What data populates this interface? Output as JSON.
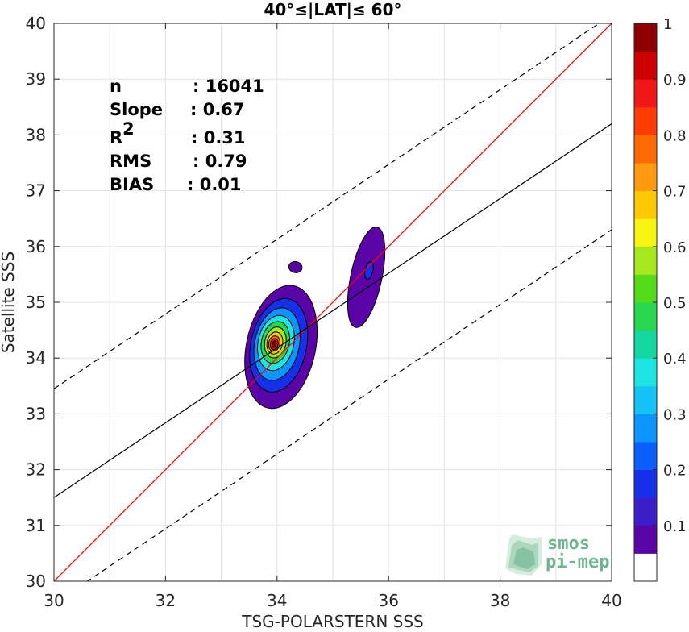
{
  "chart_data": {
    "type": "contour",
    "title": "40°≤|LAT|≤ 60°",
    "xlabel": "TSG-POLARSTERN SSS",
    "ylabel": "Satellite SSS",
    "xlim": [
      30,
      40
    ],
    "ylim": [
      30,
      40
    ],
    "xticks": [
      "30",
      "32",
      "34",
      "36",
      "38",
      "40"
    ],
    "yticks": [
      "30",
      "31",
      "32",
      "33",
      "34",
      "35",
      "36",
      "37",
      "38",
      "39",
      "40"
    ],
    "grid": true,
    "stats": [
      {
        "label": "n",
        "value": ": 16041"
      },
      {
        "label": "Slope",
        "value": ": 0.67"
      },
      {
        "label": "R",
        "sup": "2",
        "value": ": 0.31"
      },
      {
        "label": "RMS",
        "value": ": 0.79"
      },
      {
        "label": "BIAS",
        "value": ": 0.01"
      }
    ],
    "lines": [
      {
        "role": "identity",
        "color": "#ff0000",
        "style": "solid",
        "points": [
          [
            30,
            30
          ],
          [
            40,
            40
          ]
        ]
      },
      {
        "role": "regression",
        "color": "#000000",
        "style": "solid",
        "points": [
          [
            30,
            31.5
          ],
          [
            40,
            38.2
          ]
        ]
      },
      {
        "role": "upper-bound",
        "color": "#000000",
        "style": "dashed",
        "points": [
          [
            30,
            33.45
          ],
          [
            40,
            40.15
          ]
        ]
      },
      {
        "role": "lower-bound",
        "color": "#000000",
        "style": "dashed",
        "points": [
          [
            30,
            29.6
          ],
          [
            40,
            36.3
          ]
        ]
      }
    ],
    "density_blobs": [
      {
        "center": [
          33.95,
          34.25
        ],
        "levels": [
          {
            "value": 0.05,
            "rx": 0.62,
            "ry": 1.12,
            "dx": 0.12,
            "dy": -0.05
          },
          {
            "value": 0.15,
            "rx": 0.5,
            "ry": 0.85,
            "dx": 0.08,
            "dy": -0.02
          },
          {
            "value": 0.25,
            "rx": 0.4,
            "ry": 0.66,
            "dx": 0.05,
            "dy": 0.0
          },
          {
            "value": 0.35,
            "rx": 0.32,
            "ry": 0.5,
            "dx": 0.03,
            "dy": 0.02
          },
          {
            "value": 0.45,
            "rx": 0.25,
            "ry": 0.38,
            "dx": 0.02,
            "dy": 0.03
          },
          {
            "value": 0.55,
            "rx": 0.19,
            "ry": 0.28,
            "dx": 0.02,
            "dy": 0.03
          },
          {
            "value": 0.65,
            "rx": 0.14,
            "ry": 0.2,
            "dx": 0.01,
            "dy": 0.02
          },
          {
            "value": 0.75,
            "rx": 0.1,
            "ry": 0.14,
            "dx": 0.0,
            "dy": 0.01
          },
          {
            "value": 0.85,
            "rx": 0.07,
            "ry": 0.1,
            "dx": 0.0,
            "dy": 0.0
          },
          {
            "value": 0.95,
            "rx": 0.035,
            "ry": 0.06,
            "dx": 0.0,
            "dy": 0.0
          }
        ]
      },
      {
        "center": [
          35.6,
          35.45
        ],
        "levels": [
          {
            "value": 0.05,
            "rx": 0.28,
            "ry": 0.92,
            "dx": 0.0,
            "dy": 0.0
          },
          {
            "value": 0.15,
            "rx": 0.07,
            "ry": 0.16,
            "dx": 0.05,
            "dy": 0.12
          }
        ]
      },
      {
        "center": [
          34.33,
          35.63
        ],
        "levels": [
          {
            "value": 0.05,
            "rx": 0.12,
            "ry": 0.1,
            "dx": 0.0,
            "dy": 0.0
          }
        ]
      }
    ],
    "colorbar": {
      "ticks": [
        "0.1",
        "0.2",
        "0.3",
        "0.4",
        "0.5",
        "0.6",
        "0.7",
        "0.8",
        "0.9",
        "1"
      ],
      "tick_values": [
        0.1,
        0.2,
        0.3,
        0.4,
        0.5,
        0.6,
        0.7,
        0.8,
        0.9,
        1.0
      ],
      "colors": [
        "#ffffff",
        "#5a04a8",
        "#3a1ec8",
        "#1530e8",
        "#0a60ff",
        "#0a95ff",
        "#14c3f5",
        "#1de5e1",
        "#14d6a0",
        "#28d750",
        "#54dc16",
        "#a7e71e",
        "#f6f50f",
        "#ffc800",
        "#ff9b0c",
        "#ff6a00",
        "#ff3c00",
        "#f21616",
        "#cf0000",
        "#8e0000"
      ]
    },
    "watermark": {
      "line1": "smos",
      "line2": "pi-mep"
    }
  }
}
